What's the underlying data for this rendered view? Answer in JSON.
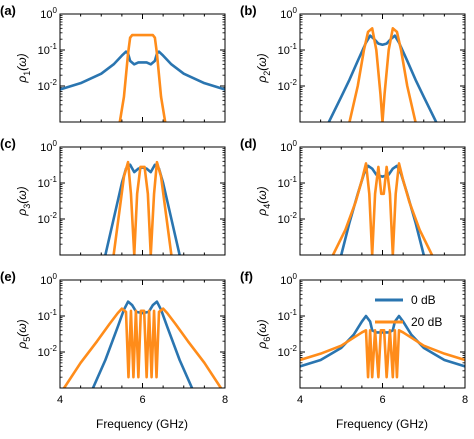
{
  "figure": {
    "xlabel": "Frequency (GHz)",
    "legend": [
      {
        "label": "0 dB",
        "color": "#2a75b0"
      },
      {
        "label": "20 dB",
        "color": "#ff8c1a"
      }
    ]
  },
  "chart_data": [
    {
      "type": "line",
      "panel": "(a)",
      "ylabel": "ρ_1(ω)",
      "xlim": [
        4,
        8
      ],
      "ylim": [
        0.001,
        1
      ],
      "yscale": "log",
      "xticks": [
        4,
        6,
        8
      ],
      "yticks": [
        "10^0",
        "10^-1",
        "10^-2"
      ],
      "series": [
        {
          "name": "0 dB",
          "color": "#2a75b0",
          "x": [
            4.0,
            4.5,
            5.0,
            5.3,
            5.5,
            5.6,
            5.65,
            5.7,
            5.8,
            5.9,
            6.0,
            6.1,
            6.2,
            6.3,
            6.35,
            6.4,
            6.5,
            6.7,
            7.0,
            7.5,
            8.0
          ],
          "y": [
            0.008,
            0.012,
            0.022,
            0.04,
            0.07,
            0.09,
            0.08,
            0.05,
            0.04,
            0.045,
            0.045,
            0.045,
            0.04,
            0.05,
            0.08,
            0.09,
            0.07,
            0.04,
            0.022,
            0.012,
            0.008
          ]
        },
        {
          "name": "20 dB",
          "color": "#ff8c1a",
          "x": [
            5.45,
            5.55,
            5.65,
            5.7,
            5.75,
            5.85,
            6.0,
            6.15,
            6.25,
            6.3,
            6.35,
            6.45,
            6.55
          ],
          "y": [
            0.001,
            0.005,
            0.08,
            0.22,
            0.26,
            0.26,
            0.26,
            0.26,
            0.26,
            0.22,
            0.08,
            0.005,
            0.001
          ]
        }
      ]
    },
    {
      "type": "line",
      "panel": "(b)",
      "ylabel": "ρ_2(ω)",
      "xlim": [
        4,
        8
      ],
      "ylim": [
        0.001,
        1
      ],
      "yscale": "log",
      "xticks": [
        4,
        6,
        8
      ],
      "yticks": [
        "10^0",
        "10^-1",
        "10^-2"
      ],
      "series": [
        {
          "name": "0 dB",
          "color": "#2a75b0",
          "x": [
            4.7,
            5.0,
            5.2,
            5.4,
            5.6,
            5.7,
            5.8,
            5.9,
            6.0,
            6.1,
            6.2,
            6.3,
            6.4,
            6.6,
            6.8,
            7.0,
            7.3
          ],
          "y": [
            0.001,
            0.005,
            0.015,
            0.05,
            0.16,
            0.25,
            0.2,
            0.15,
            0.14,
            0.15,
            0.2,
            0.25,
            0.16,
            0.05,
            0.015,
            0.005,
            0.001
          ]
        },
        {
          "name": "20 dB",
          "color": "#ff8c1a",
          "x": [
            5.2,
            5.4,
            5.55,
            5.65,
            5.75,
            5.85,
            5.95,
            6.0,
            6.05,
            6.15,
            6.25,
            6.35,
            6.45,
            6.6,
            6.8
          ],
          "y": [
            0.001,
            0.01,
            0.1,
            0.32,
            0.4,
            0.1,
            0.006,
            0.001,
            0.006,
            0.1,
            0.4,
            0.32,
            0.1,
            0.01,
            0.001
          ]
        }
      ]
    },
    {
      "type": "line",
      "panel": "(c)",
      "ylabel": "ρ_3(ω)",
      "xlim": [
        4,
        8
      ],
      "ylim": [
        0.001,
        1
      ],
      "yscale": "log",
      "xticks": [
        4,
        6,
        8
      ],
      "yticks": [
        "10^0",
        "10^-1",
        "10^-2"
      ],
      "series": [
        {
          "name": "0 dB",
          "color": "#2a75b0",
          "x": [
            5.1,
            5.3,
            5.5,
            5.6,
            5.7,
            5.8,
            5.9,
            6.0,
            6.1,
            6.2,
            6.3,
            6.4,
            6.5,
            6.7,
            6.9
          ],
          "y": [
            0.001,
            0.01,
            0.1,
            0.25,
            0.32,
            0.2,
            0.25,
            0.27,
            0.25,
            0.2,
            0.32,
            0.25,
            0.1,
            0.01,
            0.001
          ]
        },
        {
          "name": "20 dB",
          "color": "#ff8c1a",
          "x": [
            5.3,
            5.45,
            5.55,
            5.65,
            5.72,
            5.8,
            5.87,
            5.95,
            6.05,
            6.13,
            6.2,
            6.28,
            6.35,
            6.45,
            6.55,
            6.7
          ],
          "y": [
            0.001,
            0.02,
            0.15,
            0.38,
            0.05,
            0.001,
            0.05,
            0.28,
            0.28,
            0.05,
            0.001,
            0.05,
            0.38,
            0.15,
            0.02,
            0.001
          ]
        }
      ]
    },
    {
      "type": "line",
      "panel": "(d)",
      "ylabel": "ρ_4(ω)",
      "xlim": [
        4,
        8
      ],
      "ylim": [
        0.001,
        1
      ],
      "yscale": "log",
      "xticks": [
        4,
        6,
        8
      ],
      "yticks": [
        "10^0",
        "10^-1",
        "10^-2"
      ],
      "series": [
        {
          "name": "0 dB",
          "color": "#2a75b0",
          "x": [
            5.0,
            5.2,
            5.4,
            5.55,
            5.65,
            5.75,
            5.85,
            6.0,
            6.15,
            6.25,
            6.35,
            6.45,
            6.6,
            6.8,
            7.0
          ],
          "y": [
            0.001,
            0.008,
            0.05,
            0.18,
            0.3,
            0.25,
            0.17,
            0.15,
            0.17,
            0.25,
            0.3,
            0.18,
            0.05,
            0.008,
            0.001
          ]
        },
        {
          "name": "20 dB",
          "color": "#ff8c1a",
          "x": [
            4.8,
            5.1,
            5.35,
            5.5,
            5.6,
            5.68,
            5.75,
            5.82,
            5.9,
            5.97,
            6.03,
            6.1,
            6.18,
            6.25,
            6.32,
            6.4,
            6.5,
            6.65,
            6.9,
            7.2
          ],
          "y": [
            0.001,
            0.005,
            0.03,
            0.12,
            0.35,
            0.05,
            0.001,
            0.05,
            0.28,
            0.05,
            0.05,
            0.28,
            0.05,
            0.001,
            0.05,
            0.35,
            0.12,
            0.03,
            0.005,
            0.001
          ]
        }
      ]
    },
    {
      "type": "line",
      "panel": "(e)",
      "ylabel": "ρ_5(ω)",
      "xlim": [
        4,
        8
      ],
      "ylim": [
        0.001,
        1
      ],
      "yscale": "log",
      "xticks": [
        4,
        6,
        8
      ],
      "xticklabels": [
        "4",
        "6",
        "8"
      ],
      "yticks": [
        "10^0",
        "10^-1",
        "10^-2"
      ],
      "series": [
        {
          "name": "0 dB",
          "color": "#2a75b0",
          "x": [
            4.8,
            5.1,
            5.4,
            5.55,
            5.65,
            5.75,
            5.85,
            6.0,
            6.15,
            6.25,
            6.35,
            6.45,
            6.6,
            6.9,
            7.2
          ],
          "y": [
            0.001,
            0.006,
            0.05,
            0.15,
            0.25,
            0.2,
            0.13,
            0.12,
            0.13,
            0.2,
            0.25,
            0.15,
            0.05,
            0.006,
            0.001
          ]
        },
        {
          "name": "20 dB",
          "color": "#ff8c1a",
          "x": [
            4.1,
            4.5,
            4.9,
            5.2,
            5.4,
            5.5,
            5.6,
            5.66,
            5.72,
            5.78,
            5.84,
            5.9,
            5.96,
            6.04,
            6.1,
            6.16,
            6.22,
            6.28,
            6.34,
            6.4,
            6.5,
            6.6,
            6.8,
            7.1,
            7.5,
            7.9
          ],
          "y": [
            0.001,
            0.005,
            0.02,
            0.06,
            0.12,
            0.16,
            0.13,
            0.002,
            0.14,
            0.002,
            0.14,
            0.002,
            0.14,
            0.14,
            0.002,
            0.14,
            0.002,
            0.14,
            0.002,
            0.13,
            0.16,
            0.12,
            0.06,
            0.02,
            0.005,
            0.001
          ]
        }
      ]
    },
    {
      "type": "line",
      "panel": "(f)",
      "ylabel": "ρ_6(ω)",
      "xlim": [
        4,
        8
      ],
      "ylim": [
        0.001,
        1
      ],
      "yscale": "log",
      "xticks": [
        4,
        6,
        8
      ],
      "xticklabels": [
        "4",
        "6",
        "8"
      ],
      "yticks": [
        "10^0",
        "10^-1",
        "10^-2"
      ],
      "legend_position": "top-right",
      "series": [
        {
          "name": "0 dB",
          "color": "#2a75b0",
          "x": [
            4.0,
            4.5,
            5.0,
            5.3,
            5.5,
            5.6,
            5.7,
            5.75,
            5.85,
            6.0,
            6.15,
            6.25,
            6.3,
            6.4,
            6.5,
            6.7,
            7.0,
            7.5,
            8.0
          ],
          "y": [
            0.004,
            0.006,
            0.013,
            0.03,
            0.07,
            0.1,
            0.07,
            0.04,
            0.035,
            0.035,
            0.035,
            0.04,
            0.07,
            0.1,
            0.07,
            0.03,
            0.013,
            0.006,
            0.004
          ]
        },
        {
          "name": "20 dB",
          "color": "#ff8c1a",
          "x": [
            4.0,
            4.5,
            5.0,
            5.3,
            5.5,
            5.6,
            5.65,
            5.7,
            5.75,
            5.82,
            5.9,
            5.96,
            6.04,
            6.1,
            6.18,
            6.25,
            6.3,
            6.35,
            6.4,
            6.5,
            6.7,
            7.0,
            7.5,
            8.0
          ],
          "y": [
            0.006,
            0.009,
            0.015,
            0.025,
            0.035,
            0.04,
            0.002,
            0.04,
            0.002,
            0.04,
            0.002,
            0.04,
            0.04,
            0.002,
            0.04,
            0.002,
            0.04,
            0.002,
            0.04,
            0.035,
            0.025,
            0.015,
            0.009,
            0.006
          ]
        }
      ]
    }
  ]
}
